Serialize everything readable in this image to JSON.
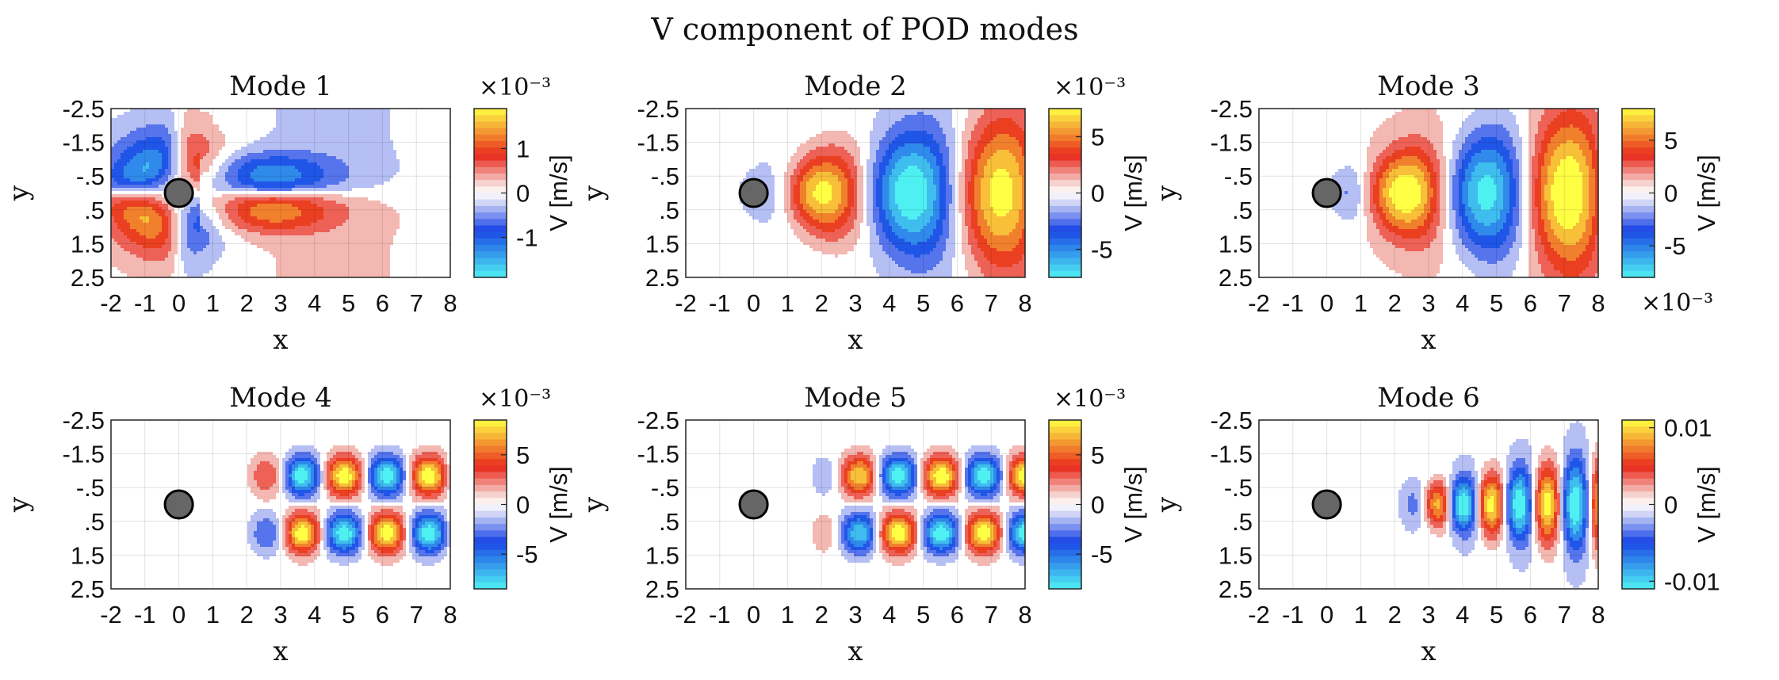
{
  "figure": {
    "title": "V component of POD modes",
    "background": "#ffffff"
  },
  "colormap": {
    "negative_end": "#4ff0f2",
    "negative_mid": "#1a44e6",
    "negative_light": "#cfd4f6",
    "zero": "#ffffff",
    "positive_light": "#f6d0cc",
    "positive_mid": "#e8291d",
    "positive_end": "#ffff44"
  },
  "chart_data": [
    {
      "type": "heatmap",
      "title": "Mode 1",
      "xlabel": "x",
      "ylabel": "y",
      "colorbar_label": "V [m/s]",
      "colorbar_exponent": "×10⁻³",
      "xlim": [
        -2,
        8
      ],
      "ylim": [
        -2.5,
        2.5
      ],
      "y_reversed": true,
      "xticks": [
        "-2",
        "-1",
        "0",
        "1",
        "2",
        "3",
        "4",
        "5",
        "6",
        "7",
        "8"
      ],
      "yticks": [
        "-2.5",
        "-1.5",
        "-.5",
        ".5",
        "1.5",
        "2.5"
      ],
      "clim": [
        -1.9,
        1.9
      ],
      "colorbar_ticks": [
        1,
        0,
        -1
      ],
      "colorbar_tick_labels": [
        "1",
        "0",
        "-1"
      ],
      "cylinder": {
        "x": 0,
        "y": 0,
        "r": 0.5
      },
      "field": {
        "kind": "dipole",
        "amplitude": 1.9,
        "wake_peak_x": 2.5,
        "wake_peak_y": 1.0
      }
    },
    {
      "type": "heatmap",
      "title": "Mode 2",
      "xlabel": "x",
      "ylabel": "y",
      "colorbar_label": "V [m/s]",
      "colorbar_exponent": "×10⁻³",
      "xlim": [
        -2,
        8
      ],
      "ylim": [
        -2.5,
        2.5
      ],
      "y_reversed": true,
      "xticks": [
        "-2",
        "-1",
        "0",
        "1",
        "2",
        "3",
        "4",
        "5",
        "6",
        "7",
        "8"
      ],
      "yticks": [
        "-2.5",
        "-1.5",
        "-.5",
        ".5",
        "1.5",
        "2.5"
      ],
      "clim": [
        -7.5,
        7.5
      ],
      "colorbar_ticks": [
        5,
        0,
        -5
      ],
      "colorbar_tick_labels": [
        "5",
        "0",
        "-5"
      ],
      "cylinder": {
        "x": 0,
        "y": 0,
        "r": 0.5
      },
      "field": {
        "kind": "sym",
        "amplitude": 7.5,
        "wavelength": 5.3,
        "phase_x": 2.0,
        "onset_x": 0.8,
        "background": -0.06
      }
    },
    {
      "type": "heatmap",
      "title": "Mode 3",
      "xlabel": "x",
      "ylabel": "y",
      "colorbar_label": "V [m/s]",
      "colorbar_exponent": "×10⁻³",
      "xlim": [
        -2,
        8
      ],
      "ylim": [
        -2.5,
        2.5
      ],
      "y_reversed": true,
      "xticks": [
        "-2",
        "-1",
        "0",
        "1",
        "2",
        "3",
        "4",
        "5",
        "6",
        "7",
        "8"
      ],
      "yticks": [
        "-2.5",
        "-1.5",
        "-.5",
        ".5",
        "1.5",
        "2.5"
      ],
      "clim": [
        -8,
        8
      ],
      "colorbar_ticks": [
        5,
        0,
        -5
      ],
      "colorbar_tick_labels": [
        "5",
        "0",
        "-5"
      ],
      "cylinder": {
        "x": 0,
        "y": 0,
        "r": 0.5
      },
      "field": {
        "kind": "sym",
        "amplitude": 8,
        "wavelength": 4.8,
        "phase_x": 2.3,
        "onset_x": 0.6,
        "background": 0.08
      }
    },
    {
      "type": "heatmap",
      "title": "Mode 4",
      "xlabel": "x",
      "ylabel": "y",
      "colorbar_label": "V [m/s]",
      "colorbar_exponent": "×10⁻³",
      "xlim": [
        -2,
        8
      ],
      "ylim": [
        -2.5,
        2.5
      ],
      "y_reversed": true,
      "xticks": [
        "-2",
        "-1",
        "0",
        "1",
        "2",
        "3",
        "4",
        "5",
        "6",
        "7",
        "8"
      ],
      "yticks": [
        "-2.5",
        "-1.5",
        "-.5",
        ".5",
        "1.5",
        "2.5"
      ],
      "clim": [
        -8.5,
        8.5
      ],
      "colorbar_ticks": [
        5,
        0,
        -5
      ],
      "colorbar_tick_labels": [
        "5",
        "0",
        "-5"
      ],
      "cylinder": {
        "x": 0,
        "y": 0,
        "r": 0.5
      },
      "field": {
        "kind": "anti",
        "amplitude": 8.5,
        "wavelength": 2.5,
        "phase_x": 3.0,
        "onset_x": 1.7
      }
    },
    {
      "type": "heatmap",
      "title": "Mode 5",
      "xlabel": "x",
      "ylabel": "y",
      "colorbar_label": "V [m/s]",
      "colorbar_exponent": "×10⁻³",
      "xlim": [
        -2,
        8
      ],
      "ylim": [
        -2.5,
        2.5
      ],
      "y_reversed": true,
      "xticks": [
        "-2",
        "-1",
        "0",
        "1",
        "2",
        "3",
        "4",
        "5",
        "6",
        "7",
        "8"
      ],
      "yticks": [
        "-2.5",
        "-1.5",
        "-.5",
        ".5",
        "1.5",
        "2.5"
      ],
      "clim": [
        -8.5,
        8.5
      ],
      "colorbar_ticks": [
        5,
        0,
        -5
      ],
      "colorbar_tick_labels": [
        "5",
        "0",
        "-5"
      ],
      "cylinder": {
        "x": 0,
        "y": 0,
        "r": 0.5
      },
      "field": {
        "kind": "anti",
        "amplitude": 8.5,
        "wavelength": 2.5,
        "phase_x": 3.65,
        "onset_x": 1.5
      }
    },
    {
      "type": "heatmap",
      "title": "Mode 6",
      "xlabel": "x",
      "ylabel": "y",
      "colorbar_label": "V [m/s]",
      "colorbar_exponent": "",
      "xlim": [
        -2,
        8
      ],
      "ylim": [
        -2.5,
        2.5
      ],
      "y_reversed": true,
      "xticks": [
        "-2",
        "-1",
        "0",
        "1",
        "2",
        "3",
        "4",
        "5",
        "6",
        "7",
        "8"
      ],
      "yticks": [
        "-2.5",
        "-1.5",
        "-.5",
        ".5",
        "1.5",
        "2.5"
      ],
      "clim": [
        -0.011,
        0.011
      ],
      "colorbar_ticks": [
        0.01,
        0,
        -0.01
      ],
      "colorbar_tick_labels": [
        "0.01",
        "0",
        "-0.01"
      ],
      "cylinder": {
        "x": 0,
        "y": 0,
        "r": 0.5
      },
      "field": {
        "kind": "sym",
        "amplitude": 0.011,
        "wavelength": 1.65,
        "phase_x": 3.2,
        "onset_x": 2.0,
        "background": -0.07,
        "narrow": true
      }
    }
  ]
}
